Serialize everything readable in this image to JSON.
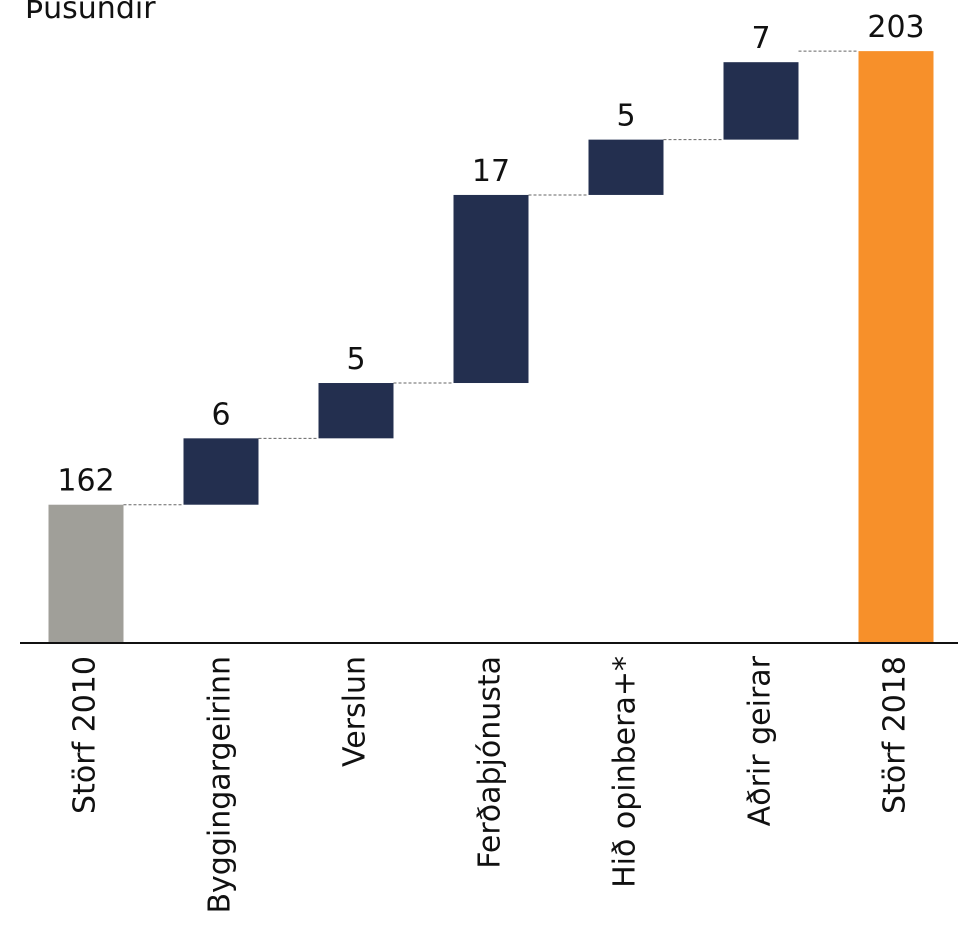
{
  "chart_data": {
    "type": "waterfall",
    "title": "Þúsundir",
    "categories": [
      "Störf 2010",
      "Byggingargeirinn",
      "Verslun",
      "Ferðaþjónusta",
      "Hið opinbera+*",
      "Aðrir geirar",
      "Störf 2018"
    ],
    "values": [
      162,
      6,
      5,
      17,
      5,
      7,
      203
    ],
    "colors": [
      "#a09f99",
      "#232f4f",
      "#232f4f",
      "#232f4f",
      "#232f4f",
      "#232f4f",
      "#f7902a"
    ],
    "ylim": [
      149.5,
      205
    ]
  }
}
